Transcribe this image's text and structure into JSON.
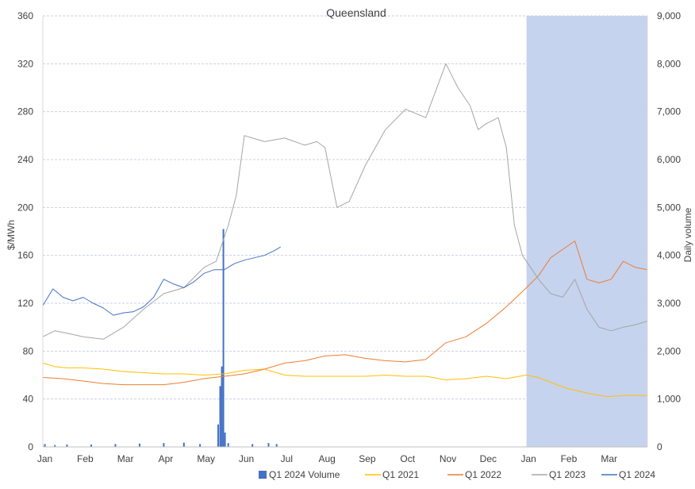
{
  "chart_data": {
    "type": "line",
    "title": "Queensland",
    "ylabel": "$/MWh",
    "y2label": "Daily volume",
    "ylim": [
      0,
      360
    ],
    "y2lim": [
      0,
      9000
    ],
    "yticks": [
      "0",
      "40",
      "80",
      "120",
      "160",
      "200",
      "240",
      "280",
      "320",
      "360"
    ],
    "y2ticks": [
      "0",
      "1,000",
      "2,000",
      "3,000",
      "4,000",
      "5,000",
      "6,000",
      "7,000",
      "8,000",
      "9,000"
    ],
    "xlabels": [
      "Jan",
      "Feb",
      "Mar",
      "Apr",
      "May",
      "Jun",
      "Jul",
      "Aug",
      "Sep",
      "Oct",
      "Nov",
      "Dec",
      "Jan",
      "Feb",
      "Mar"
    ],
    "x_range": [
      0,
      15
    ],
    "grid": true,
    "legend_position": "bottom",
    "shaded_region": {
      "from": 12,
      "to": 15,
      "color": "#c5d3ee"
    },
    "series": [
      {
        "name": "Q1 2024 Volume",
        "kind": "bar",
        "axis": "right",
        "color": "#4472c4",
        "x": [
          0.05,
          0.3,
          0.6,
          1.2,
          1.8,
          2.4,
          3.0,
          3.5,
          3.9,
          4.35,
          4.4,
          4.44,
          4.48,
          4.52,
          4.6,
          5.2,
          5.6,
          5.8
        ],
        "values": [
          60,
          40,
          50,
          50,
          60,
          70,
          80,
          90,
          60,
          470,
          1270,
          1680,
          4550,
          300,
          80,
          60,
          80,
          60
        ]
      },
      {
        "name": "Q1 2021",
        "kind": "line",
        "axis": "left",
        "color": "#ffc000",
        "x": [
          0,
          0.3,
          0.6,
          1,
          1.5,
          2,
          2.5,
          3,
          3.5,
          4,
          4.5,
          5,
          5.5,
          6,
          6.5,
          7,
          7.5,
          8,
          8.5,
          9,
          9.5,
          10,
          10.5,
          11,
          11.5,
          12,
          12.3,
          12.6,
          13,
          13.5,
          14,
          14.5,
          15
        ],
        "values": [
          70,
          67,
          66,
          66,
          65,
          63,
          62,
          61,
          61,
          60,
          61,
          64,
          65,
          60,
          59,
          59,
          59,
          59,
          60,
          59,
          59,
          56,
          57,
          59,
          57,
          60,
          58,
          54,
          49,
          45,
          42,
          43,
          43
        ]
      },
      {
        "name": "Q1 2022",
        "kind": "line",
        "axis": "left",
        "color": "#ed7d31",
        "x": [
          0,
          0.5,
          1,
          1.5,
          2,
          2.5,
          3,
          3.5,
          4,
          4.5,
          5,
          5.5,
          6,
          6.5,
          7,
          7.5,
          8,
          8.5,
          9,
          9.5,
          10,
          10.5,
          11,
          11.5,
          12,
          12.3,
          12.6,
          12.9,
          13.2,
          13.5,
          13.8,
          14.1,
          14.4,
          14.7,
          15
        ],
        "values": [
          58,
          57,
          55,
          53,
          52,
          52,
          52,
          54,
          57,
          59,
          61,
          65,
          70,
          72,
          76,
          77,
          74,
          72,
          71,
          73,
          87,
          92,
          103,
          117,
          133,
          143,
          158,
          165,
          172,
          140,
          137,
          140,
          155,
          150,
          148
        ]
      },
      {
        "name": "Q1 2023",
        "kind": "line",
        "axis": "left",
        "color": "#a5a5a5",
        "x": [
          0,
          0.3,
          0.6,
          1,
          1.5,
          2,
          2.5,
          3,
          3.5,
          4,
          4.3,
          4.6,
          4.8,
          5,
          5.5,
          6,
          6.5,
          6.8,
          7,
          7.3,
          7.6,
          8,
          8.5,
          9,
          9.5,
          10,
          10.3,
          10.6,
          10.8,
          11,
          11.3,
          11.5,
          11.7,
          11.9,
          12,
          12.3,
          12.6,
          12.9,
          13.2,
          13.5,
          13.8,
          14.1,
          14.4,
          14.7,
          15
        ],
        "values": [
          92,
          97,
          95,
          92,
          90,
          100,
          115,
          128,
          133,
          150,
          155,
          185,
          210,
          260,
          255,
          258,
          252,
          255,
          250,
          200,
          205,
          235,
          265,
          282,
          275,
          320,
          300,
          285,
          265,
          270,
          275,
          250,
          185,
          160,
          155,
          140,
          128,
          125,
          140,
          115,
          100,
          97,
          100,
          102,
          105
        ]
      },
      {
        "name": "Q1 2024",
        "kind": "line",
        "axis": "left",
        "color": "#4472c4",
        "x": [
          0,
          0.25,
          0.5,
          0.75,
          1,
          1.25,
          1.5,
          1.75,
          2,
          2.25,
          2.5,
          2.75,
          3,
          3.25,
          3.5,
          3.75,
          4,
          4.25,
          4.5,
          4.75,
          5,
          5.25,
          5.5,
          5.75,
          5.9
        ],
        "values": [
          118,
          132,
          125,
          122,
          125,
          120,
          116,
          110,
          112,
          113,
          117,
          125,
          140,
          136,
          133,
          138,
          145,
          148,
          148,
          153,
          156,
          158,
          160,
          164,
          167
        ]
      }
    ]
  }
}
